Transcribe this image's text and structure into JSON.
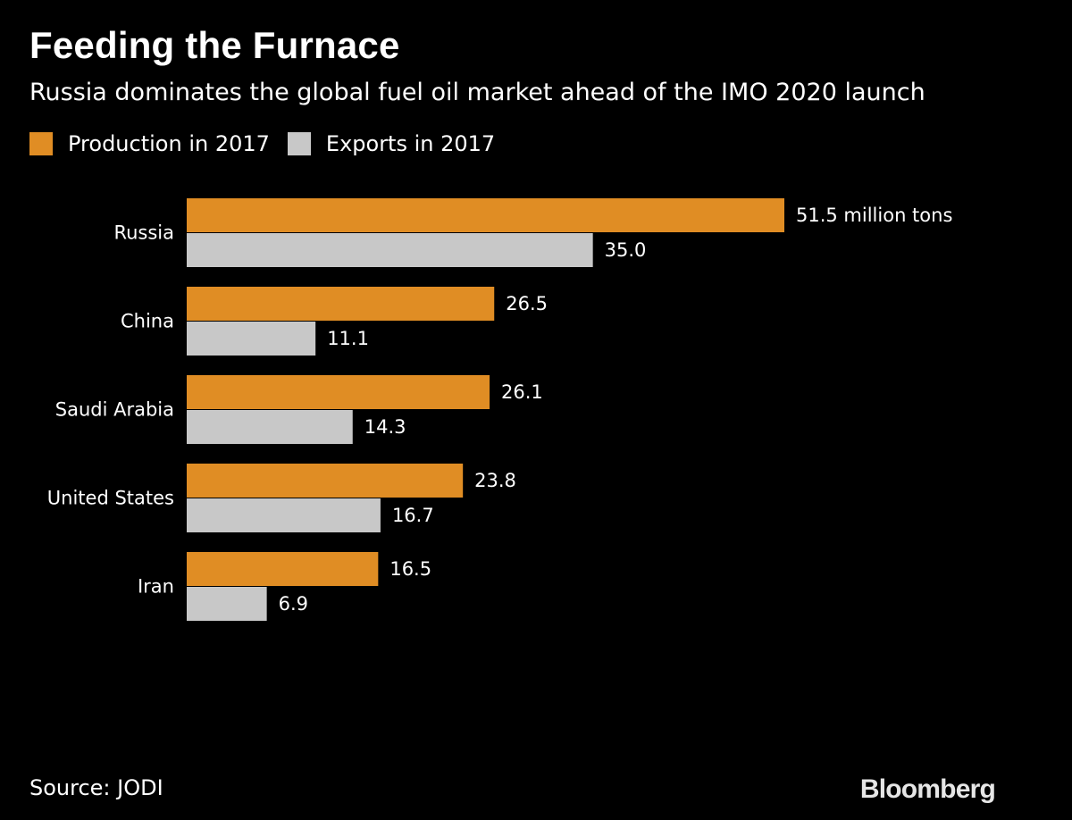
{
  "colors": {
    "background": "#000000",
    "production": "#e08d24",
    "exports": "#c8c8c8",
    "text": "#ffffff"
  },
  "source": "Source: JODI",
  "logo": "Bloomberg",
  "chart_data": {
    "type": "bar",
    "orientation": "horizontal",
    "title": "Feeding the Furnace",
    "subtitle": "Russia dominates the global fuel oil market ahead of the IMO 2020 launch",
    "categories": [
      "Russia",
      "China",
      "Saudi Arabia",
      "United States",
      "Iran"
    ],
    "series": [
      {
        "name": "Production in 2017",
        "color": "#e08d24",
        "values": [
          51.5,
          26.5,
          26.1,
          23.8,
          16.5
        ],
        "labels": [
          "51.5 million tons",
          "26.5",
          "26.1",
          "23.8",
          "16.5"
        ]
      },
      {
        "name": "Exports in 2017",
        "color": "#c8c8c8",
        "values": [
          35.0,
          11.1,
          14.3,
          16.7,
          6.9
        ],
        "labels": [
          "35.0",
          "11.1",
          "14.3",
          "16.7",
          "6.9"
        ]
      }
    ],
    "xlim": [
      0,
      51.5
    ],
    "grid": false,
    "legend_position": "top-left"
  }
}
